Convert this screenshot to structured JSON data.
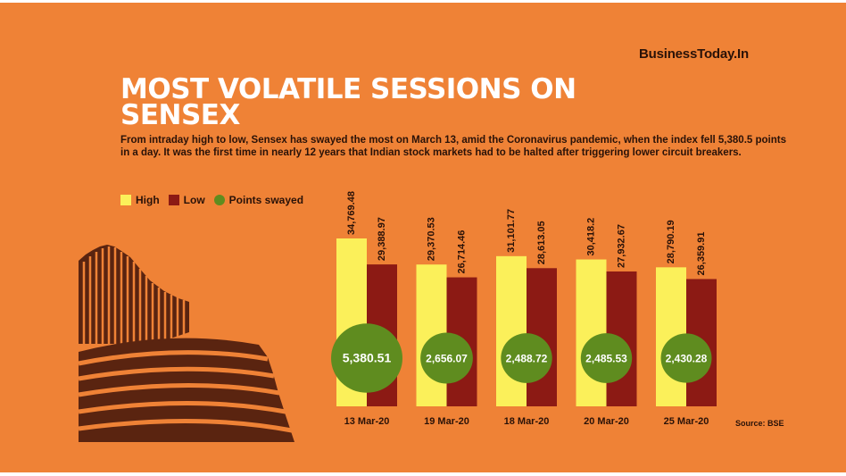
{
  "brand": "BusinessToday.In",
  "title": "MOST VOLATILE SESSIONS ON SENSEX",
  "subtitle": "From intraday high to low, Sensex has swayed the most on March 13, amid the Coronavirus pandemic, when the index fell 5,380.5 points in a day. It was the first time in nearly 12 years that Indian stock markets had to be halted after triggering lower circuit breakers.",
  "legend": {
    "high": "High",
    "low": "Low",
    "swayed": "Points swayed"
  },
  "source": "Source: BSE",
  "colors": {
    "background": "#ef8236",
    "high": "#fbf05a",
    "low": "#8c1a14",
    "swayed": "#5f8c1f",
    "text": "#2a1208",
    "building": "#5a2410"
  },
  "illustration": "bse-building",
  "chart_data": {
    "type": "bar",
    "categories": [
      "13 Mar-20",
      "19 Mar-20",
      "18 Mar-20",
      "20 Mar-20",
      "25 Mar-20"
    ],
    "series": [
      {
        "name": "High",
        "values": [
          34769.48,
          29370.53,
          31101.77,
          30418.2,
          28790.19
        ]
      },
      {
        "name": "Low",
        "values": [
          29388.97,
          26714.46,
          28613.05,
          27932.67,
          26359.91
        ]
      },
      {
        "name": "Points swayed",
        "values": [
          5380.51,
          2656.07,
          2488.72,
          2485.53,
          2430.28
        ]
      }
    ],
    "high_labels": [
      "34,769.48",
      "29,370.53",
      "31,101.77",
      "30,418.2",
      "28,790.19"
    ],
    "low_labels": [
      "29,388.97",
      "26,714.46",
      "28,613.05",
      "27,932.67",
      "26,359.91"
    ],
    "swayed_labels": [
      "5,380.51",
      "2,656.07",
      "2,488.72",
      "2,485.53",
      "2,430.28"
    ],
    "ylim": [
      0,
      34769.48
    ],
    "grid": false,
    "legend_position": "top-left"
  }
}
